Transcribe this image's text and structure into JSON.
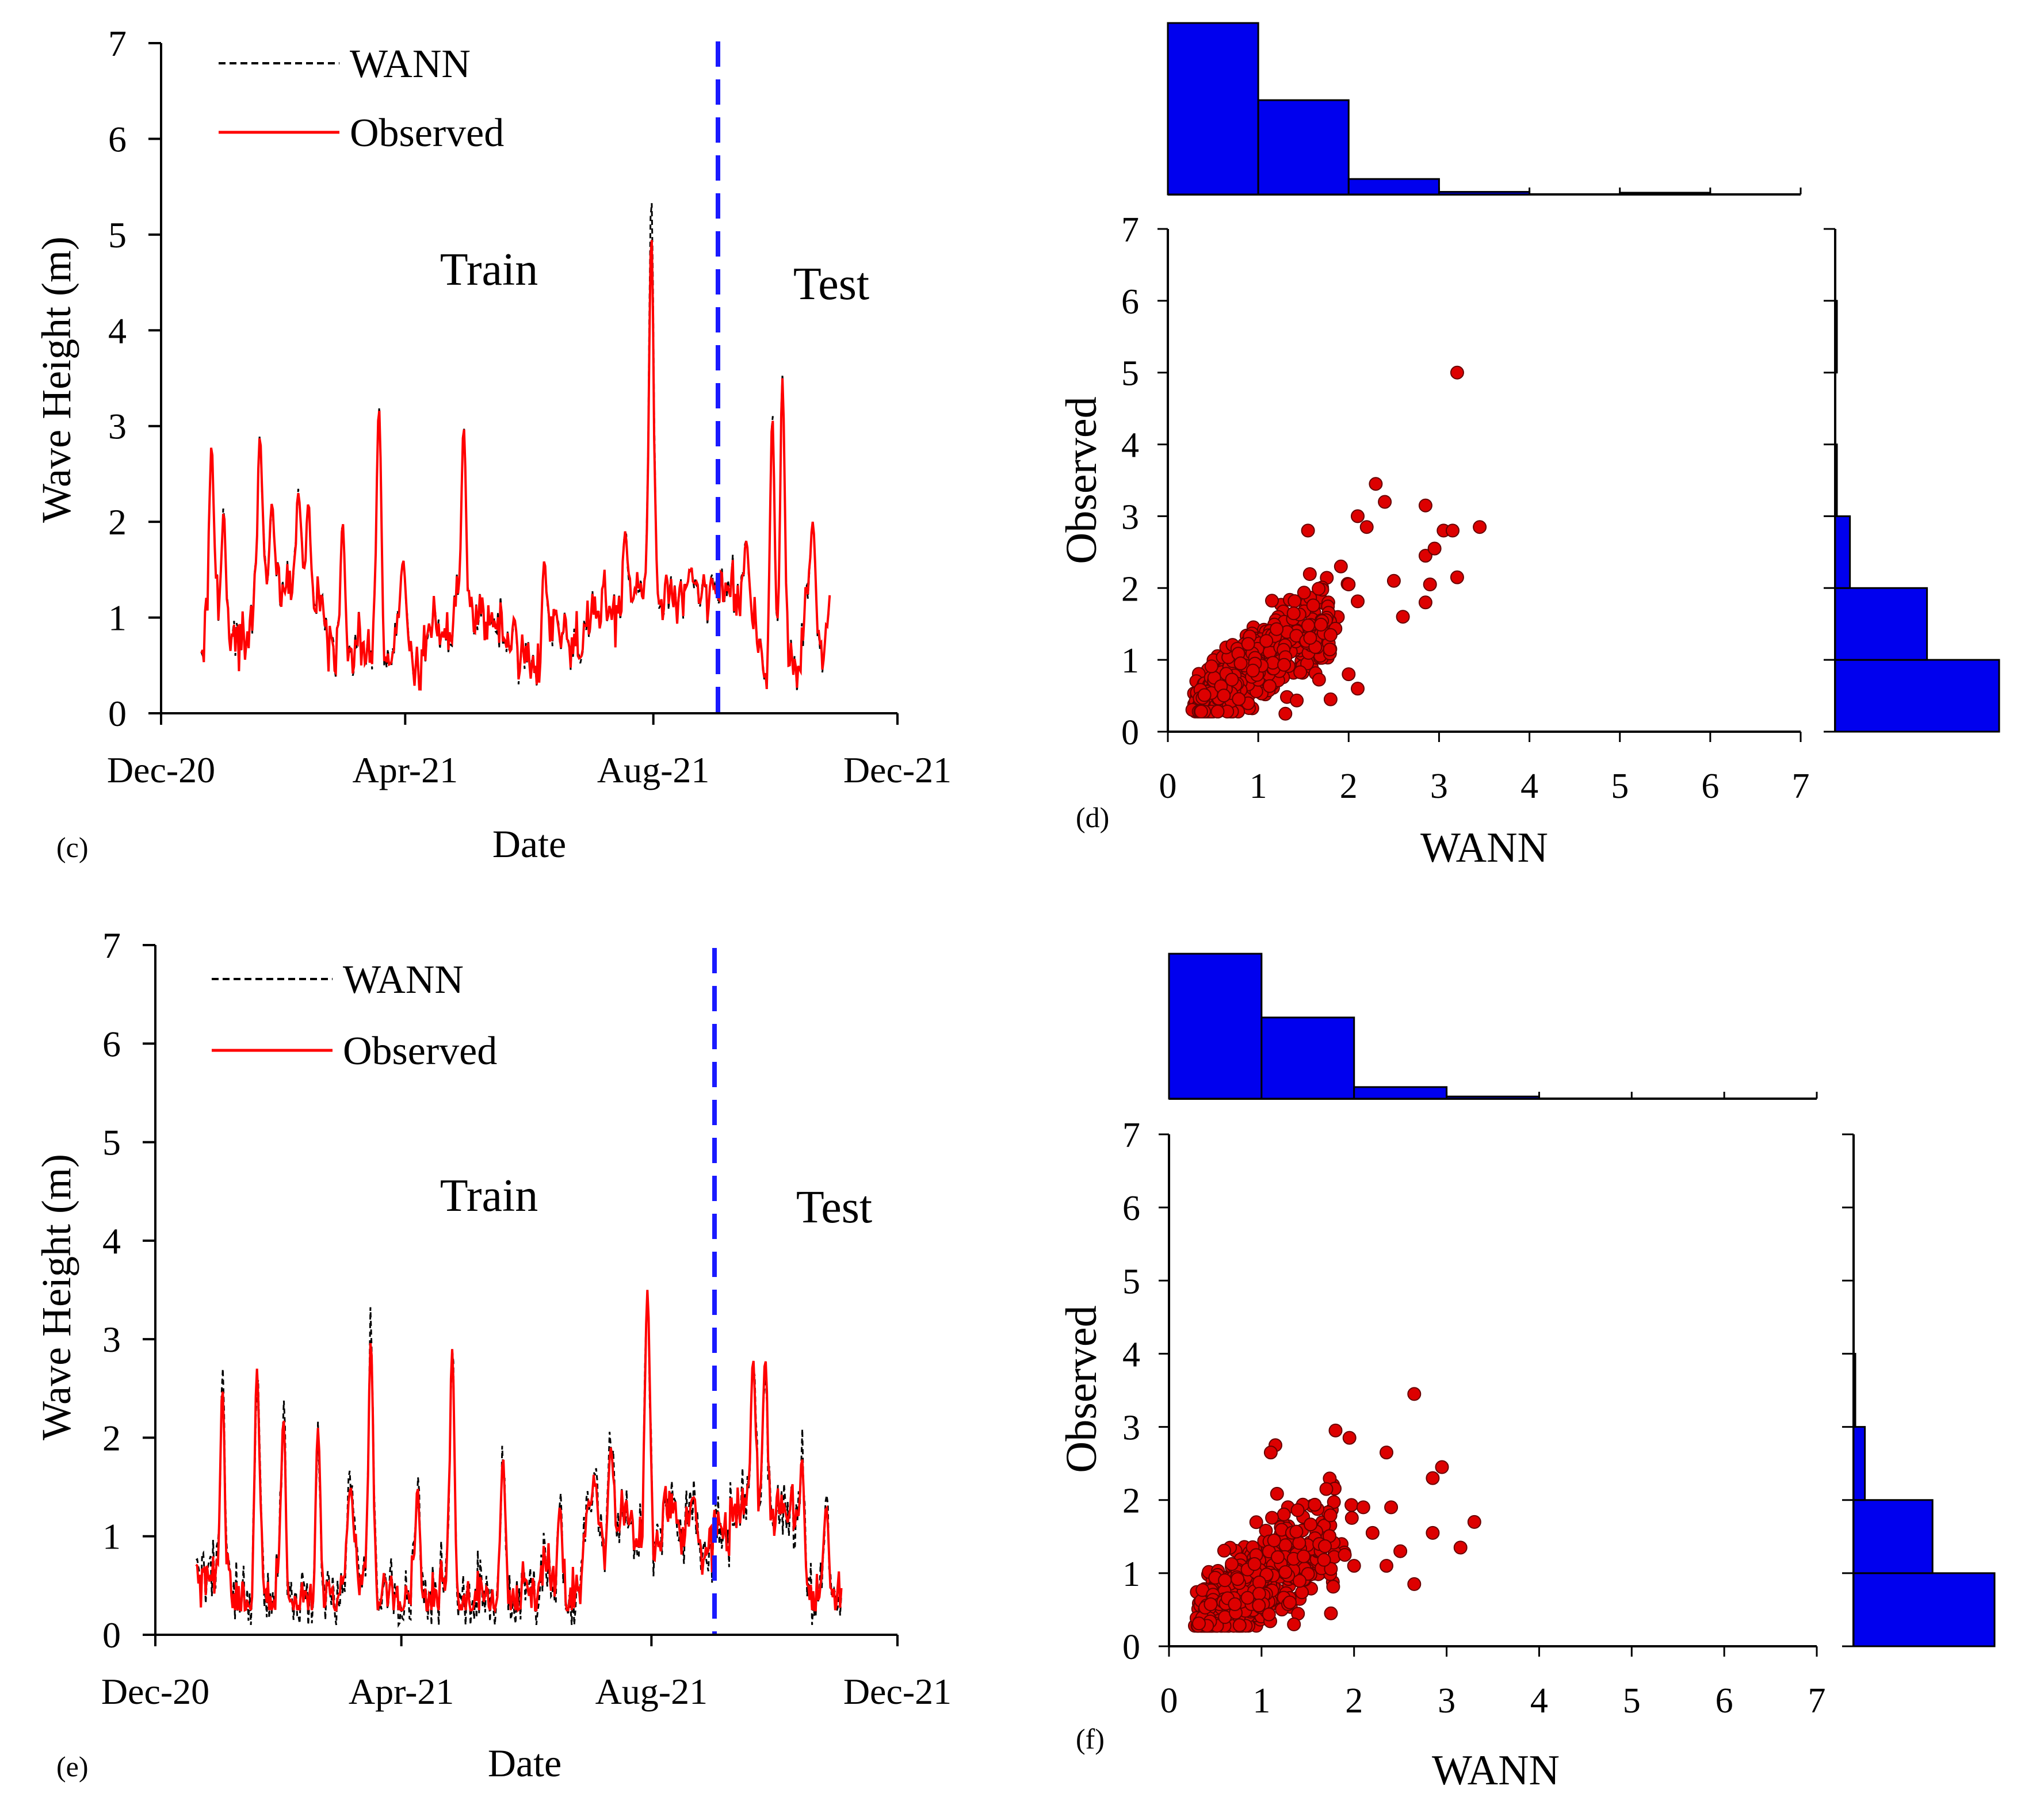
{
  "figure": {
    "colors": {
      "observed": "#ff0000",
      "wann": "#000000",
      "split": "#1a1aff",
      "hist_fill": "#0000ee",
      "scatter_fill": "#dd0000",
      "scatter_edge": "#660000"
    }
  },
  "chart_data": [
    {
      "type": "line",
      "panel_label": "(c)",
      "xlabel": "Date",
      "ylabel": "Wave Height (m)",
      "ylim": [
        0,
        7
      ],
      "yticks": [
        "0",
        "1",
        "2",
        "3",
        "4",
        "5",
        "6",
        "7"
      ],
      "x_domain_days": [
        0,
        365
      ],
      "xticks": [
        {
          "day": 0,
          "label": "Dec-20"
        },
        {
          "day": 121,
          "label": "Apr-21"
        },
        {
          "day": 244,
          "label": "Aug-21"
        },
        {
          "day": 365,
          "label": "Dec-21"
        }
      ],
      "legend": {
        "wann": "WANN",
        "observed": "Observed"
      },
      "annotations": {
        "train": "Train",
        "test": "Test"
      },
      "split_day": 278,
      "series_days": [
        20,
        332
      ],
      "peaks": [
        {
          "day": 25,
          "obs": 2.8,
          "wann": 2.8
        },
        {
          "day": 31,
          "obs": 2.1,
          "wann": 2.1
        },
        {
          "day": 49,
          "obs": 2.9,
          "wann": 2.9
        },
        {
          "day": 55,
          "obs": 2.2,
          "wann": 2.2
        },
        {
          "day": 68,
          "obs": 2.3,
          "wann": 2.3
        },
        {
          "day": 73,
          "obs": 2.2,
          "wann": 2.2
        },
        {
          "day": 90,
          "obs": 2.0,
          "wann": 2.0
        },
        {
          "day": 108,
          "obs": 3.2,
          "wann": 3.2
        },
        {
          "day": 120,
          "obs": 1.6,
          "wann": 1.6
        },
        {
          "day": 150,
          "obs": 3.0,
          "wann": 3.0
        },
        {
          "day": 175,
          "obs": 1.0,
          "wann": 1.0
        },
        {
          "day": 190,
          "obs": 1.6,
          "wann": 1.6
        },
        {
          "day": 215,
          "obs": 0.9,
          "wann": 0.9
        },
        {
          "day": 230,
          "obs": 1.9,
          "wann": 1.9
        },
        {
          "day": 243,
          "obs": 5.0,
          "wann": 5.4
        },
        {
          "day": 262,
          "obs": 1.5,
          "wann": 1.5
        },
        {
          "day": 276,
          "obs": 1.2,
          "wann": 1.2
        },
        {
          "day": 290,
          "obs": 1.8,
          "wann": 1.8
        },
        {
          "day": 303,
          "obs": 3.1,
          "wann": 3.1
        },
        {
          "day": 308,
          "obs": 3.5,
          "wann": 3.5
        },
        {
          "day": 323,
          "obs": 2.0,
          "wann": 2.0
        }
      ],
      "baseline_range": [
        0.3,
        1.4
      ]
    },
    {
      "type": "scatter",
      "panel_label": "(d)",
      "xlabel": "WANN",
      "ylabel": "Observed",
      "xlim": [
        0,
        7
      ],
      "ylim": [
        0,
        7
      ],
      "ticks": [
        "0",
        "1",
        "2",
        "3",
        "4",
        "5",
        "6",
        "7"
      ],
      "hist_x": {
        "bins": [
          0,
          1,
          2,
          3,
          4,
          5,
          6
        ],
        "relative_heights": [
          1.0,
          0.55,
          0.09,
          0.015,
          0.0,
          0.008
        ]
      },
      "hist_y": {
        "bins": [
          0,
          1,
          2,
          3,
          4,
          5,
          6
        ],
        "relative_widths": [
          1.0,
          0.56,
          0.09,
          0.01,
          0.0,
          0.006
        ]
      },
      "highlight_points": [
        [
          3.2,
          5.0
        ],
        [
          2.3,
          3.45
        ],
        [
          2.4,
          3.2
        ],
        [
          3.05,
          2.8
        ],
        [
          3.15,
          2.8
        ],
        [
          3.45,
          2.85
        ],
        [
          2.1,
          3.0
        ],
        [
          2.2,
          2.85
        ],
        [
          2.85,
          3.15
        ],
        [
          2.85,
          2.45
        ],
        [
          2.95,
          2.55
        ],
        [
          3.2,
          2.15
        ],
        [
          2.0,
          2.05
        ],
        [
          2.5,
          2.1
        ],
        [
          2.9,
          2.05
        ],
        [
          2.85,
          1.8
        ],
        [
          2.6,
          1.6
        ],
        [
          1.55,
          2.8
        ],
        [
          1.3,
          0.25
        ],
        [
          1.8,
          0.45
        ],
        [
          2.1,
          0.6
        ],
        [
          2.0,
          0.8
        ]
      ],
      "cluster": {
        "center_wann": 0.9,
        "correlation": "strong",
        "spread": 0.3
      }
    },
    {
      "type": "line",
      "panel_label": "(e)",
      "xlabel": "Date",
      "ylabel": "Wave Height (m)",
      "ylim": [
        0,
        7
      ],
      "yticks": [
        "0",
        "1",
        "2",
        "3",
        "4",
        "5",
        "6",
        "7"
      ],
      "x_domain_days": [
        0,
        365
      ],
      "xticks": [
        {
          "day": 0,
          "label": "Dec-20"
        },
        {
          "day": 121,
          "label": "Apr-21"
        },
        {
          "day": 244,
          "label": "Aug-21"
        },
        {
          "day": 365,
          "label": "Dec-21"
        }
      ],
      "legend": {
        "wann": "WANN",
        "observed": "Observed"
      },
      "annotations": {
        "train": "Train",
        "test": "Test"
      },
      "split_day": 274,
      "series_days": [
        20,
        338
      ],
      "peaks": [
        {
          "day": 33,
          "obs": 2.5,
          "wann": 2.6
        },
        {
          "day": 50,
          "obs": 2.7,
          "wann": 2.7
        },
        {
          "day": 63,
          "obs": 2.2,
          "wann": 2.3
        },
        {
          "day": 80,
          "obs": 2.1,
          "wann": 2.1
        },
        {
          "day": 96,
          "obs": 1.5,
          "wann": 1.6
        },
        {
          "day": 106,
          "obs": 3.0,
          "wann": 3.15
        },
        {
          "day": 129,
          "obs": 1.5,
          "wann": 1.6
        },
        {
          "day": 146,
          "obs": 2.9,
          "wann": 2.85
        },
        {
          "day": 171,
          "obs": 1.8,
          "wann": 1.85
        },
        {
          "day": 199,
          "obs": 1.3,
          "wann": 1.4
        },
        {
          "day": 224,
          "obs": 1.9,
          "wann": 2.0
        },
        {
          "day": 242,
          "obs": 3.5,
          "wann": 3.5
        },
        {
          "day": 265,
          "obs": 1.4,
          "wann": 1.4
        },
        {
          "day": 294,
          "obs": 2.8,
          "wann": 2.8
        },
        {
          "day": 300,
          "obs": 2.8,
          "wann": 2.8
        },
        {
          "day": 318,
          "obs": 1.8,
          "wann": 1.9
        },
        {
          "day": 330,
          "obs": 1.3,
          "wann": 1.35
        }
      ],
      "baseline_range": [
        0.3,
        1.4
      ]
    },
    {
      "type": "scatter",
      "panel_label": "(f)",
      "xlabel": "WANN",
      "ylabel": "Observed",
      "xlim": [
        0,
        7
      ],
      "ylim": [
        0,
        7
      ],
      "ticks": [
        "0",
        "1",
        "2",
        "3",
        "4",
        "5",
        "6",
        "7"
      ],
      "hist_x": {
        "bins": [
          0,
          1,
          2,
          3,
          4,
          5,
          6
        ],
        "relative_heights": [
          1.0,
          0.56,
          0.08,
          0.015
        ]
      },
      "hist_y": {
        "bins": [
          0,
          1,
          2,
          3,
          4,
          5,
          6
        ],
        "relative_widths": [
          1.0,
          0.56,
          0.08,
          0.01
        ]
      },
      "highlight_points": [
        [
          2.65,
          3.45
        ],
        [
          1.8,
          2.95
        ],
        [
          1.95,
          2.85
        ],
        [
          1.15,
          2.75
        ],
        [
          1.1,
          2.65
        ],
        [
          2.95,
          2.45
        ],
        [
          2.85,
          2.3
        ],
        [
          2.35,
          2.65
        ],
        [
          1.7,
          2.15
        ],
        [
          2.1,
          1.9
        ],
        [
          2.4,
          1.9
        ],
        [
          3.3,
          1.7
        ],
        [
          2.85,
          1.55
        ],
        [
          3.15,
          1.35
        ],
        [
          2.65,
          0.85
        ],
        [
          1.75,
          0.45
        ],
        [
          1.35,
          0.3
        ],
        [
          2.5,
          1.3
        ],
        [
          2.35,
          1.1
        ],
        [
          1.9,
          1.25
        ],
        [
          2.2,
          1.55
        ],
        [
          2.0,
          1.1
        ]
      ],
      "cluster": {
        "center_wann": 0.95,
        "correlation": "moderate",
        "spread": 0.35
      }
    }
  ]
}
